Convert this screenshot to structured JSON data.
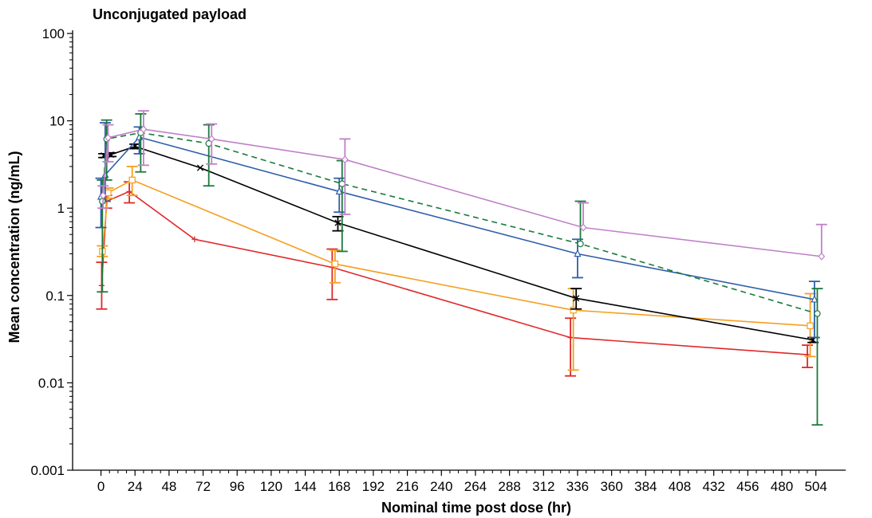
{
  "chart_data": {
    "type": "line",
    "title": "Unconjugated payload",
    "xlabel": "Nominal time post dose (hr)",
    "ylabel": "Mean concentration (ng/mL)",
    "xlim": [
      -20,
      525
    ],
    "ylim": [
      0.001,
      100
    ],
    "yscale": "log",
    "xticks": [
      0,
      24,
      48,
      72,
      96,
      120,
      144,
      168,
      192,
      216,
      240,
      264,
      288,
      312,
      336,
      360,
      384,
      408,
      432,
      456,
      480,
      504
    ],
    "yticks": [
      0.001,
      0.01,
      0.1,
      1,
      10,
      100
    ],
    "ytick_labels": [
      "0.001",
      "0.01",
      "0.1",
      "1",
      "10",
      "100"
    ],
    "grid": false,
    "legend": "none",
    "series": [
      {
        "color": "#e0282a",
        "marker": "plus",
        "dash": "solid",
        "points": [
          {
            "x": 0.5,
            "y": 0.13,
            "lo": 0.07,
            "hi": 0.24
          },
          {
            "x": 4,
            "y": 1.2,
            "lo": 1.0,
            "hi": 1.4
          },
          {
            "x": 20,
            "y": 1.55,
            "lo": 1.15,
            "hi": 2.0
          },
          {
            "x": 66,
            "y": 0.44,
            "lo": null,
            "hi": null
          },
          {
            "x": 163,
            "y": 0.21,
            "lo": 0.09,
            "hi": 0.34
          },
          {
            "x": 331,
            "y": 0.033,
            "lo": 0.012,
            "hi": 0.055
          },
          {
            "x": 498,
            "y": 0.021,
            "lo": 0.015,
            "hi": 0.027
          }
        ]
      },
      {
        "color": "#f5a020",
        "marker": "square",
        "dash": "solid",
        "points": [
          {
            "x": 1,
            "y": 0.32,
            "lo": 0.28,
            "hi": 0.37
          },
          {
            "x": 5,
            "y": 1.5,
            "lo": 1.3,
            "hi": 1.7
          },
          {
            "x": 22,
            "y": 2.1,
            "lo": 1.4,
            "hi": 3.0
          },
          {
            "x": 165,
            "y": 0.23,
            "lo": 0.14,
            "hi": 0.33
          },
          {
            "x": 333,
            "y": 0.068,
            "lo": 0.014,
            "hi": 0.12
          },
          {
            "x": 500,
            "y": 0.045,
            "lo": 0.02,
            "hi": 0.105
          }
        ]
      },
      {
        "color": "#000000",
        "marker": "x",
        "dash": "solid",
        "points": [
          {
            "x": 2,
            "y": 4.0,
            "lo": 3.8,
            "hi": 4.2
          },
          {
            "x": 7,
            "y": 4.1,
            "lo": 3.9,
            "hi": 4.3
          },
          {
            "x": 24,
            "y": 5.1,
            "lo": 4.8,
            "hi": 5.4
          },
          {
            "x": 70,
            "y": 2.9,
            "lo": null,
            "hi": null
          },
          {
            "x": 167,
            "y": 0.68,
            "lo": 0.55,
            "hi": 0.8
          },
          {
            "x": 335,
            "y": 0.093,
            "lo": 0.07,
            "hi": 0.12
          },
          {
            "x": 502,
            "y": 0.031,
            "lo": 0.029,
            "hi": 0.033
          }
        ]
      },
      {
        "color": "#2e5fa8",
        "marker": "triangle",
        "dash": "solid",
        "points": [
          {
            "x": 0,
            "y": 1.35,
            "lo": 0.6,
            "hi": 2.2
          },
          {
            "x": 3,
            "y": 2.4,
            "lo": 1.2,
            "hi": 9.5
          },
          {
            "x": 27,
            "y": 6.5,
            "lo": 4.2,
            "hi": 8.5
          },
          {
            "x": 168,
            "y": 1.55,
            "lo": 0.9,
            "hi": 2.2
          },
          {
            "x": 336,
            "y": 0.3,
            "lo": 0.16,
            "hi": 0.44
          },
          {
            "x": 503,
            "y": 0.09,
            "lo": 0.033,
            "hi": 0.145
          }
        ]
      },
      {
        "color": "#1a7a3c",
        "marker": "circle",
        "dash": "dashed",
        "points": [
          {
            "x": 1,
            "y": 1.2,
            "lo": 0.11,
            "hi": 2.1
          },
          {
            "x": 4,
            "y": 6.2,
            "lo": 2.1,
            "hi": 10.2
          },
          {
            "x": 28,
            "y": 7.3,
            "lo": 2.6,
            "hi": 12.0
          },
          {
            "x": 76,
            "y": 5.5,
            "lo": 1.8,
            "hi": 9.0
          },
          {
            "x": 170,
            "y": 1.9,
            "lo": 0.32,
            "hi": 3.5
          },
          {
            "x": 338,
            "y": 0.39,
            "lo": null,
            "hi": 1.2
          },
          {
            "x": 505,
            "y": 0.062,
            "lo": 0.0033,
            "hi": 0.12
          }
        ]
      },
      {
        "color": "#c080c8",
        "marker": "diamond",
        "dash": "solid",
        "points": [
          {
            "x": 1.5,
            "y": 1.4,
            "lo": 1.0,
            "hi": 1.8
          },
          {
            "x": 5,
            "y": 6.4,
            "lo": 3.4,
            "hi": 9.0
          },
          {
            "x": 30,
            "y": 8.0,
            "lo": 3.1,
            "hi": 13.0
          },
          {
            "x": 78,
            "y": 6.2,
            "lo": 3.2,
            "hi": 9.2
          },
          {
            "x": 172,
            "y": 3.6,
            "lo": 0.85,
            "hi": 6.2
          },
          {
            "x": 340,
            "y": 0.6,
            "lo": null,
            "hi": 1.15
          },
          {
            "x": 508,
            "y": 0.28,
            "lo": null,
            "hi": 0.65
          }
        ]
      }
    ]
  }
}
